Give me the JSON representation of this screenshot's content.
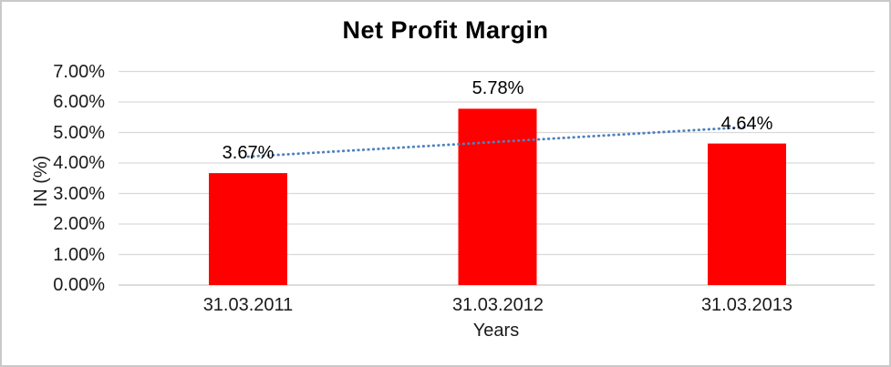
{
  "chart_data": {
    "type": "bar",
    "title": "Net Profit Margin",
    "xlabel": "Years",
    "ylabel": "IN (%)",
    "categories": [
      "31.03.2011",
      "31.03.2012",
      "31.03.2013"
    ],
    "values": [
      3.67,
      5.78,
      4.64
    ],
    "data_labels": [
      "3.67%",
      "5.78%",
      "4.64%"
    ],
    "yticks": [
      "7.00%",
      "6.00%",
      "5.00%",
      "4.00%",
      "3.00%",
      "2.00%",
      "1.00%",
      "0.00%"
    ],
    "ylim": [
      0,
      7
    ],
    "grid": true,
    "legend": false,
    "bar_color": "#ff0000",
    "trendline": {
      "type": "linear",
      "style": "dotted",
      "color": "#4f81bd",
      "values": [
        4.21,
        4.7,
        5.18
      ]
    }
  },
  "colors": {
    "background": "#ffffff",
    "frame_border": "#c9c9c9",
    "gridline": "#d9d9d9",
    "baseline": "#c8c8c8",
    "text": "#1a1a1a",
    "bar": "#ff0000",
    "trendline": "#4f81bd"
  }
}
